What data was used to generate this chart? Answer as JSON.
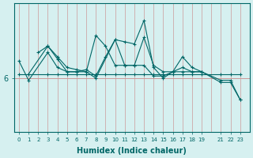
{
  "xlabel": "Humidex (Indice chaleur)",
  "ylabel": "",
  "bg_color": "#d6f0f0",
  "line_color": "#006666",
  "grid_color": "#cc9999",
  "ytick_labels": [
    "6"
  ],
  "ytick_values": [
    6
  ],
  "xlim": [
    -0.5,
    24
  ],
  "ylim": [
    3.5,
    9.5
  ],
  "xticks": [
    0,
    1,
    2,
    3,
    4,
    5,
    6,
    7,
    8,
    9,
    10,
    11,
    12,
    13,
    14,
    15,
    16,
    17,
    18,
    19,
    21,
    22,
    23
  ],
  "xtick_labels": [
    "0",
    "1",
    "2",
    "3",
    "4",
    "5",
    "6",
    "7",
    "8",
    "9",
    "10",
    "11",
    "12",
    "13",
    "14",
    "15",
    "16",
    "17",
    "18",
    "19",
    "21",
    "22",
    "23"
  ],
  "lines": [
    {
      "x": [
        0,
        1,
        3,
        4,
        5,
        6,
        7,
        8,
        9,
        10,
        11,
        12,
        13,
        14,
        15,
        16,
        17,
        18,
        19,
        21,
        22,
        23
      ],
      "y": [
        6.8,
        5.9,
        7.2,
        6.5,
        6.3,
        6.3,
        6.4,
        6.1,
        7.0,
        7.8,
        6.6,
        6.6,
        7.9,
        6.6,
        6.3,
        6.3,
        6.5,
        6.3,
        6.3,
        5.9,
        5.9,
        5.0
      ]
    },
    {
      "x": [
        2,
        3,
        4,
        5,
        6,
        7,
        8,
        9,
        10,
        11,
        12,
        13,
        14,
        15,
        16,
        17,
        18,
        19,
        21,
        22,
        23
      ],
      "y": [
        7.2,
        7.5,
        7.0,
        6.5,
        6.4,
        6.3,
        8.0,
        7.5,
        6.6,
        6.6,
        6.6,
        6.6,
        6.1,
        6.1,
        6.3,
        7.0,
        6.5,
        6.3,
        5.8,
        5.8,
        5.0
      ]
    },
    {
      "x": [
        1,
        3,
        4,
        5,
        6,
        7,
        8,
        10,
        11,
        12,
        13,
        14,
        15,
        16,
        17,
        18,
        19
      ],
      "y": [
        6.2,
        7.5,
        6.9,
        6.3,
        6.3,
        6.3,
        6.0,
        7.8,
        7.7,
        7.6,
        8.7,
        6.5,
        6.0,
        6.3,
        6.3,
        6.3,
        6.3
      ]
    },
    {
      "x": [
        0,
        1,
        3,
        4,
        5,
        6,
        7,
        8,
        9,
        10,
        11,
        12,
        13,
        14,
        15,
        16,
        17,
        18,
        19,
        21,
        22,
        23
      ],
      "y": [
        6.2,
        6.2,
        6.2,
        6.2,
        6.2,
        6.2,
        6.2,
        6.2,
        6.2,
        6.2,
        6.2,
        6.2,
        6.2,
        6.2,
        6.2,
        6.2,
        6.2,
        6.2,
        6.2,
        6.2,
        6.2,
        6.2
      ]
    }
  ]
}
